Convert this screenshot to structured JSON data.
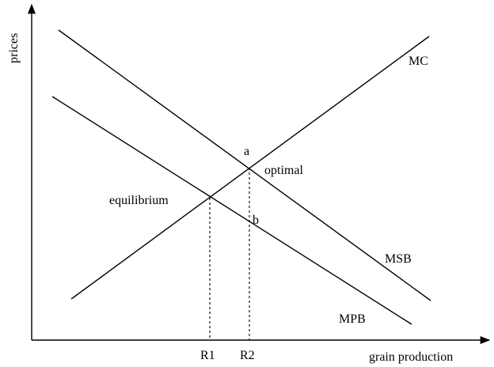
{
  "axes": {
    "y_label": "prices",
    "x_label": "grain production"
  },
  "curves": {
    "mc": "MC",
    "msb": "MSB",
    "mpb": "MPB"
  },
  "points": {
    "a": "a",
    "b": "b",
    "optimal": "optimal",
    "equilibrium": "equilibrium"
  },
  "ticks": {
    "r1": "R1",
    "r2": "R2"
  }
}
